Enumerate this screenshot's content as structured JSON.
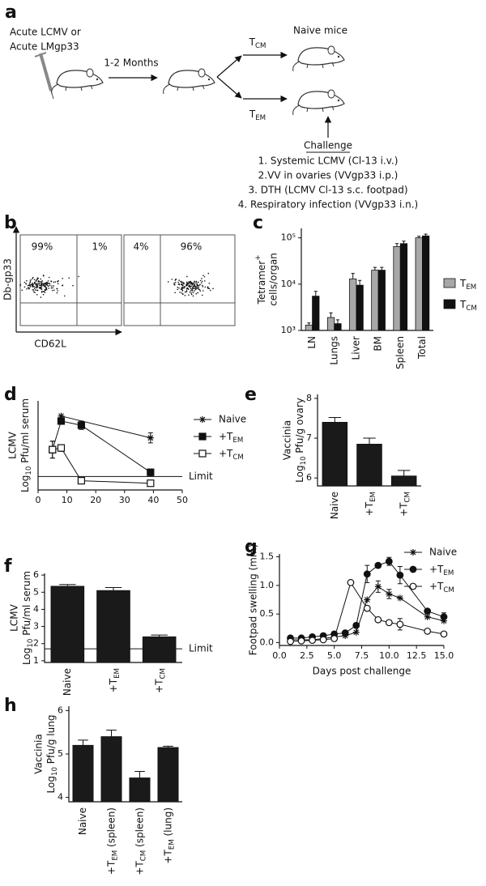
{
  "panel_labels": [
    "a",
    "b",
    "c",
    "d",
    "e",
    "f",
    "g",
    "h"
  ],
  "schematic": {
    "infection": [
      "Acute LCMV or",
      "Acute LMgp33"
    ],
    "interval": "1-2 Months",
    "tcm": [
      "T",
      "CM"
    ],
    "tem": [
      "T",
      "EM"
    ],
    "recipients": "Naive mice",
    "challenge_heading": "Challenge",
    "challenges": [
      "1. Systemic LCMV (Cl-13 i.v.)",
      "2.VV in ovaries (VVgp33 i.p.)",
      "3. DTH (LCMV Cl-13 s.c. footpad)",
      "4. Respiratory infection (VVgp33 i.n.)"
    ]
  },
  "flow": {
    "y_label": "Db-gp33",
    "x_label": "CD62L",
    "plots": [
      {
        "quadrant_labels": [
          "99%",
          "1%"
        ]
      },
      {
        "quadrant_labels": [
          "4%",
          "96%"
        ]
      }
    ]
  },
  "chart_data": [
    {
      "type": "bar",
      "log_scale": true,
      "ylabel": [
        [
          "Tetramer",
          "+"
        ],
        "cells/organ"
      ],
      "categories": [
        "LN",
        "Lungs",
        "Liver",
        "BM",
        "Spleen",
        "Total"
      ],
      "series": [
        {
          "name": [
            "T",
            "EM"
          ],
          "color": "#a8a8a8",
          "values": [
            1300,
            1900,
            13000,
            20000,
            65000,
            100000
          ],
          "errors": [
            150,
            500,
            4000,
            3000,
            10000,
            8000
          ]
        },
        {
          "name": [
            "T",
            "CM"
          ],
          "color": "#111111",
          "values": [
            5500,
            1400,
            9500,
            20000,
            75000,
            110000
          ],
          "errors": [
            1500,
            300,
            2500,
            3000,
            10000,
            10000
          ]
        }
      ],
      "ylim": [
        1000,
        160000
      ],
      "yticks": [
        {
          "value": 1000,
          "label": "10³"
        },
        {
          "value": 10000,
          "label": "10⁴"
        },
        {
          "value": 100000,
          "label": "10⁵"
        }
      ]
    },
    {
      "type": "line",
      "ylabel": [
        "LCMV",
        [
          "Log",
          "10",
          " Pfu/ml serum"
        ]
      ],
      "xlim": [
        0,
        50
      ],
      "xticks": [
        0,
        10,
        20,
        30,
        40,
        50
      ],
      "ylim": [
        0.9,
        6.2
      ],
      "reference": {
        "value": 1.7,
        "label": "Limit"
      },
      "series": [
        {
          "name": "Naive",
          "marker": "star",
          "color": "#111111",
          "x": [
            8,
            39
          ],
          "values": [
            5.3,
            4.0
          ],
          "errors": [
            null,
            0.3
          ]
        },
        {
          "name": [
            "+T",
            "EM"
          ],
          "marker": "square",
          "color": "#111111",
          "x": [
            5,
            8,
            15,
            39
          ],
          "values": [
            3.3,
            5.0,
            4.75,
            1.95
          ],
          "errors": [
            0.5,
            0.1,
            0.25,
            0.2
          ]
        },
        {
          "name": [
            "+T",
            "CM"
          ],
          "marker": "open-square",
          "color": "#111111",
          "x": [
            5,
            8,
            15,
            39
          ],
          "values": [
            3.3,
            3.4,
            1.45,
            1.3
          ],
          "errors": [
            0.5,
            0.2,
            0.15,
            0.1
          ]
        }
      ]
    },
    {
      "type": "bar",
      "ylabel": [
        "Vaccinia",
        [
          "Log",
          "10",
          " Pfu/g ovary"
        ]
      ],
      "categories": [
        "Naive",
        [
          "+T",
          "EM"
        ],
        [
          "+T",
          "CM"
        ]
      ],
      "color": "#1a1a1a",
      "values": [
        7.4,
        6.85,
        6.05
      ],
      "errors": [
        0.12,
        0.15,
        0.14
      ],
      "ylim": [
        5.8,
        8.1
      ],
      "yticks": [
        6,
        7,
        8
      ]
    },
    {
      "type": "bar",
      "ylabel": [
        "LCMV",
        [
          "Log",
          "10",
          " Pfu/ml serum"
        ]
      ],
      "categories": [
        "Naive",
        [
          "+T",
          "EM"
        ],
        [
          "+T",
          "CM"
        ]
      ],
      "color": "#1a1a1a",
      "values": [
        5.35,
        5.1,
        2.4
      ],
      "errors": [
        0.1,
        0.17,
        0.1
      ],
      "reference": {
        "value": 1.7,
        "label": "Limit"
      },
      "ylim": [
        0.9,
        6.1
      ],
      "yticks": [
        1,
        2,
        3,
        4,
        5,
        6
      ]
    },
    {
      "type": "line",
      "ylabel": [
        "Footpad swelling (mm)"
      ],
      "xlabel": "Days post challenge",
      "xlim": [
        0,
        15
      ],
      "xticks": [
        {
          "value": 0,
          "label": "0.0"
        },
        {
          "value": 2.5,
          "label": "2.5"
        },
        {
          "value": 5,
          "label": "5.0"
        },
        {
          "value": 7.5,
          "label": "7.5"
        },
        {
          "value": 10,
          "label": "10.0"
        },
        {
          "value": 12.5,
          "label": "12.5"
        },
        {
          "value": 15,
          "label": "15.0"
        }
      ],
      "ylim": [
        -0.05,
        1.55
      ],
      "yticks": [
        {
          "value": 0,
          "label": "0.0"
        },
        {
          "value": 0.5,
          "label": "0.5"
        },
        {
          "value": 1,
          "label": "1.0"
        },
        {
          "value": 1.5,
          "label": "1.5"
        }
      ],
      "series": [
        {
          "name": "Naive",
          "marker": "star",
          "color": "#111111",
          "x": [
            1,
            2,
            3,
            4,
            5,
            6,
            7,
            8,
            9,
            10,
            11,
            13.5,
            15
          ],
          "values": [
            0.05,
            0.05,
            0.05,
            0.07,
            0.1,
            0.12,
            0.18,
            0.75,
            0.98,
            0.85,
            0.78,
            0.45,
            0.38
          ],
          "errors": [
            null,
            null,
            null,
            null,
            null,
            null,
            null,
            null,
            0.1,
            0.08,
            null,
            null,
            null
          ]
        },
        {
          "name": [
            "+T",
            "EM"
          ],
          "marker": "circle",
          "color": "#111111",
          "x": [
            1,
            2,
            3,
            4,
            5,
            6,
            7,
            8,
            9,
            10,
            11,
            13.5,
            15
          ],
          "values": [
            0.08,
            0.08,
            0.1,
            0.12,
            0.15,
            0.17,
            0.3,
            1.2,
            1.35,
            1.42,
            1.18,
            0.55,
            0.45
          ],
          "errors": [
            null,
            null,
            null,
            null,
            null,
            null,
            null,
            0.15,
            null,
            0.07,
            0.15,
            null,
            0.07
          ]
        },
        {
          "name": [
            "+T",
            "CM"
          ],
          "marker": "open-circle",
          "color": "#111111",
          "x": [
            1,
            2,
            3,
            4,
            5,
            6.5,
            8,
            9,
            10,
            11,
            13.5,
            15
          ],
          "values": [
            0.02,
            0.03,
            0.04,
            0.05,
            0.07,
            1.05,
            0.6,
            0.4,
            0.35,
            0.32,
            0.2,
            0.15
          ],
          "errors": [
            null,
            null,
            null,
            null,
            null,
            null,
            null,
            null,
            null,
            0.1,
            null,
            null
          ]
        }
      ]
    },
    {
      "type": "bar",
      "ylabel": [
        "Vaccinia",
        [
          "Log",
          "10",
          " Pfu/g lung"
        ]
      ],
      "categories": [
        "Naive",
        [
          "+T",
          "EM",
          " (spleen)"
        ],
        [
          "+T",
          "CM",
          " (spleen)"
        ],
        [
          "+T",
          "EM",
          " (lung)"
        ]
      ],
      "color": "#1a1a1a",
      "values": [
        5.2,
        5.4,
        4.45,
        5.15
      ],
      "errors": [
        0.12,
        0.15,
        0.15,
        0.03
      ],
      "ylim": [
        3.9,
        6.1
      ],
      "yticks": [
        4,
        5,
        6
      ]
    }
  ]
}
